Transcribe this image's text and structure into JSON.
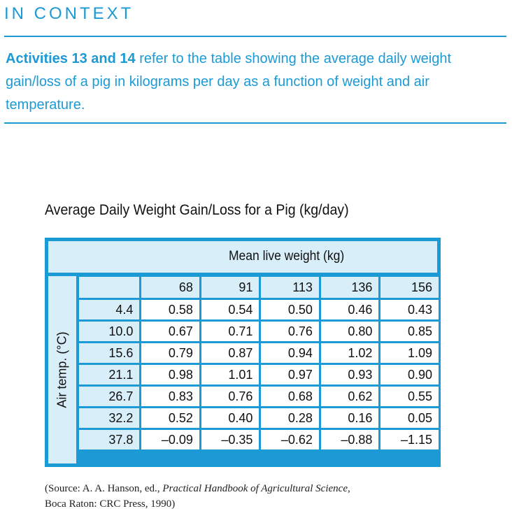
{
  "section_heading": "IN CONTEXT",
  "intro": {
    "bold": "Activities 13 and 14",
    "text": " refer to the table showing the average daily weight gain/loss of a pig in kilograms per day as a function of weight and air temperature."
  },
  "table": {
    "title": "Average Daily Weight Gain/Loss for a Pig (kg/day)",
    "column_group_label": "Mean live weight (kg)",
    "row_group_label": "Air temp. (°C)",
    "columns": [
      "68",
      "91",
      "113",
      "136",
      "156"
    ],
    "rows": [
      {
        "temp": "4.4",
        "values": [
          "0.58",
          "0.54",
          "0.50",
          "0.46",
          "0.43"
        ]
      },
      {
        "temp": "10.0",
        "values": [
          "0.67",
          "0.71",
          "0.76",
          "0.80",
          "0.85"
        ]
      },
      {
        "temp": "15.6",
        "values": [
          "0.79",
          "0.87",
          "0.94",
          "1.02",
          "1.09"
        ]
      },
      {
        "temp": "21.1",
        "values": [
          "0.98",
          "1.01",
          "0.97",
          "0.93",
          "0.90"
        ]
      },
      {
        "temp": "26.7",
        "values": [
          "0.83",
          "0.76",
          "0.68",
          "0.62",
          "0.55"
        ]
      },
      {
        "temp": "32.2",
        "values": [
          "0.52",
          "0.40",
          "0.28",
          "0.16",
          "0.05"
        ]
      },
      {
        "temp": "37.8",
        "values": [
          "–0.09",
          "–0.35",
          "–0.62",
          "–0.88",
          "–1.15"
        ]
      }
    ]
  },
  "source": {
    "prefix": "(Source: A. A. Hanson, ed., ",
    "book": "Practical Handbook of Agricultural Science",
    "suffix": ",",
    "line2": "Boca Raton: CRC Press, 1990)"
  },
  "colors": {
    "accent": "#1b9ad6",
    "header_fill": "#d8eef8"
  }
}
